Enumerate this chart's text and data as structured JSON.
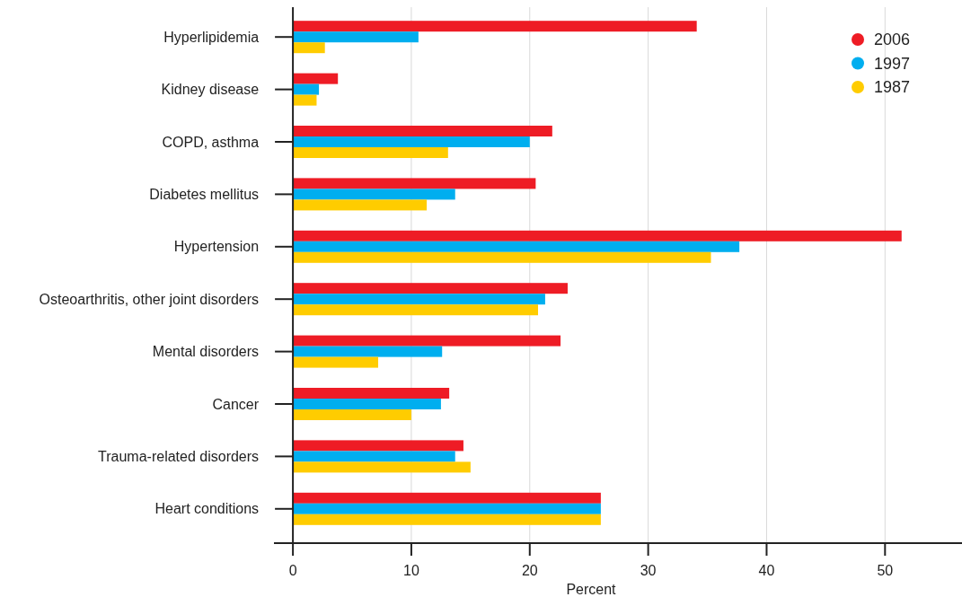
{
  "chart_data": {
    "type": "bar",
    "orientation": "horizontal",
    "xlabel": "Percent",
    "categories": [
      "Hyperlipidemia",
      "Kidney disease",
      "COPD, asthma",
      "Diabetes mellitus",
      "Hypertension",
      "Osteoarthritis, other joint disorders",
      "Mental disorders",
      "Cancer",
      "Trauma-related disorders",
      "Heart conditions"
    ],
    "series": [
      {
        "name": "2006",
        "color": "#ee1c25",
        "values": [
          34.1,
          3.8,
          21.9,
          20.5,
          51.4,
          23.2,
          22.6,
          13.2,
          14.4,
          26.0
        ]
      },
      {
        "name": "1997",
        "color": "#00aeef",
        "values": [
          10.6,
          2.2,
          20.0,
          13.7,
          37.7,
          21.3,
          12.6,
          12.5,
          13.7,
          26.0
        ]
      },
      {
        "name": "1987",
        "color": "#ffcc00",
        "values": [
          2.7,
          2.0,
          13.1,
          11.3,
          35.3,
          20.7,
          7.2,
          10.0,
          15.0,
          26.0
        ]
      }
    ],
    "xlim": [
      -1.6,
      56.5
    ],
    "xticks": [
      0,
      10,
      20,
      30,
      40,
      50
    ],
    "grid": "x",
    "legend": "top right"
  }
}
